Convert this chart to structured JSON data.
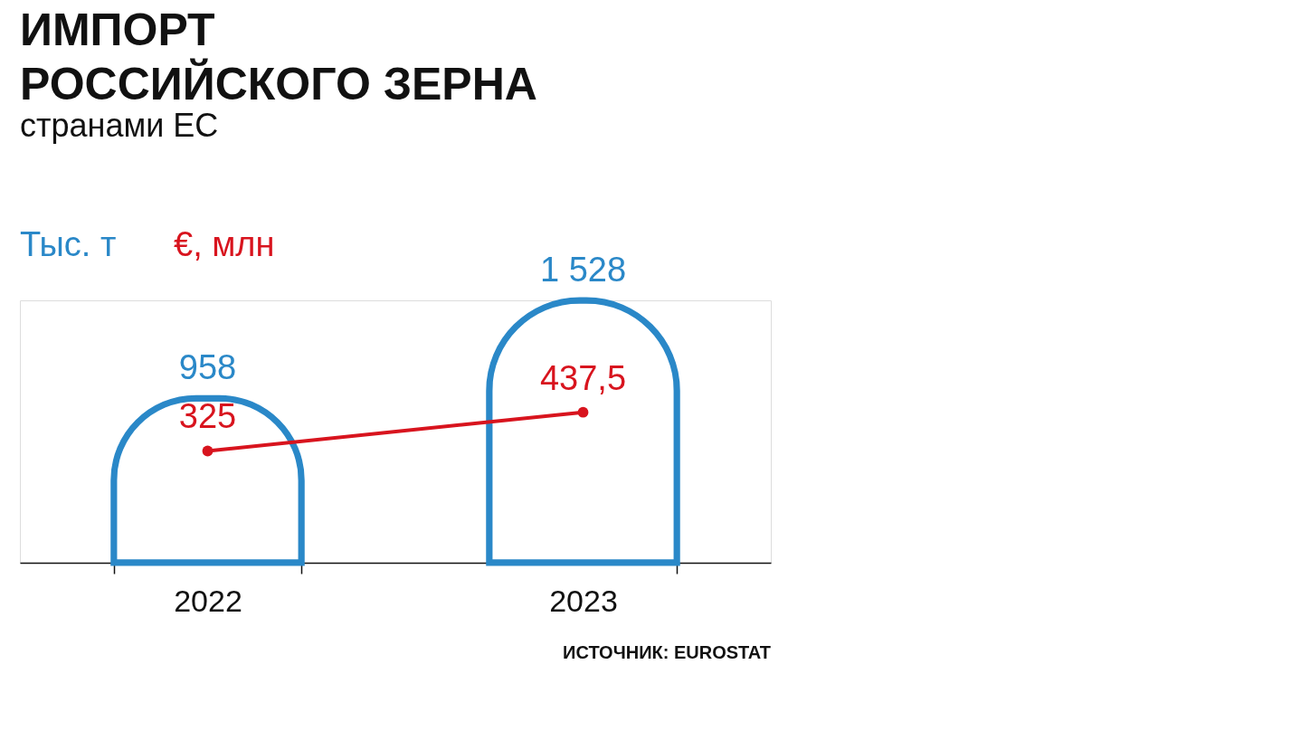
{
  "chart_data": {
    "type": "bar",
    "title": [
      "ИМПОРТ",
      "РОССИЙСКОГО ЗЕРНА"
    ],
    "subtitle": "странами ЕС",
    "categories": [
      "2022",
      "2023"
    ],
    "series": [
      {
        "name": "Тыс. т",
        "color": "#2a88c8",
        "values": [
          958,
          1528
        ],
        "value_labels": [
          "958",
          "1 528"
        ]
      },
      {
        "name": "€, млн",
        "type": "line",
        "axis": "y2",
        "color": "#d8141e",
        "values": [
          325,
          437.5
        ],
        "value_labels": [
          "325",
          "437,5"
        ]
      }
    ],
    "marker": "circle",
    "grid": false,
    "tick_labels": "x",
    "annotations": [
      "ИСТОЧНИК: EUROSTAT"
    ]
  }
}
